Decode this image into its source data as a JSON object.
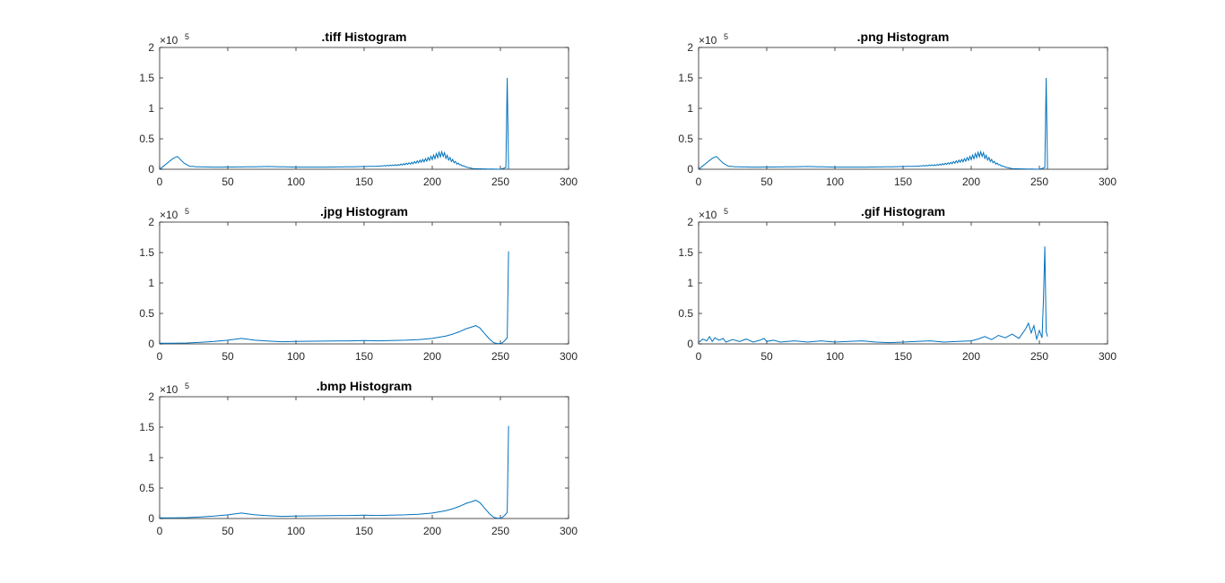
{
  "colors": {
    "line": "#0072BD",
    "axis": "#262626",
    "background": "#ffffff"
  },
  "chart_data": [
    {
      "type": "line",
      "title": ".tiff Histogram",
      "xlim": [
        0,
        300
      ],
      "ylim": [
        0,
        200000
      ],
      "xticks": [
        "0",
        "50",
        "100",
        "150",
        "200",
        "250",
        "300"
      ],
      "yticks": [
        "0",
        "0.5",
        "1",
        "1.5",
        "2"
      ],
      "y_exponent": {
        "base": "×10",
        "power": "5"
      },
      "grid": false,
      "profile": "smooth-peak-oscillating",
      "series": [
        {
          "x": [
            0,
            5,
            10,
            13,
            18,
            22,
            28,
            40,
            60,
            80,
            100,
            120,
            140,
            160,
            175,
            185,
            195,
            200,
            205,
            208,
            212,
            218,
            222,
            226,
            230,
            240,
            250,
            253,
            254,
            255,
            256
          ],
          "y": [
            0,
            9000,
            18000,
            21000,
            10000,
            5000,
            4000,
            3500,
            3800,
            4500,
            3500,
            3500,
            4000,
            5000,
            7000,
            10000,
            15000,
            19000,
            24000,
            25000,
            18000,
            10000,
            6000,
            3000,
            1000,
            500,
            0,
            2000,
            3000,
            150000,
            0
          ],
          "oscillation": {
            "from": 165,
            "to": 228,
            "amplitude": 8000
          }
        }
      ]
    },
    {
      "type": "line",
      "title": ".png Histogram",
      "xlim": [
        0,
        300
      ],
      "ylim": [
        0,
        200000
      ],
      "xticks": [
        "0",
        "50",
        "100",
        "150",
        "200",
        "250",
        "300"
      ],
      "yticks": [
        "0",
        "0.5",
        "1",
        "1.5",
        "2"
      ],
      "y_exponent": {
        "base": "×10",
        "power": "5"
      },
      "grid": false,
      "profile": "smooth-peak-oscillating",
      "series": [
        {
          "x": [
            0,
            5,
            10,
            13,
            18,
            22,
            28,
            40,
            60,
            80,
            100,
            120,
            140,
            160,
            175,
            185,
            195,
            200,
            205,
            208,
            212,
            218,
            222,
            226,
            230,
            240,
            250,
            253,
            254,
            255,
            256
          ],
          "y": [
            0,
            9000,
            18000,
            21000,
            10000,
            5000,
            4000,
            3500,
            3800,
            4500,
            3500,
            3500,
            4000,
            5000,
            7000,
            10000,
            15000,
            19000,
            24000,
            25000,
            18000,
            10000,
            6000,
            3000,
            1000,
            500,
            0,
            2000,
            3000,
            150000,
            0
          ],
          "oscillation": {
            "from": 165,
            "to": 228,
            "amplitude": 8000
          }
        }
      ]
    },
    {
      "type": "line",
      "title": ".jpg Histogram",
      "xlim": [
        0,
        300
      ],
      "ylim": [
        0,
        200000
      ],
      "xticks": [
        "0",
        "50",
        "100",
        "150",
        "200",
        "250",
        "300"
      ],
      "yticks": [
        "0",
        "0.5",
        "1",
        "1.5",
        "2"
      ],
      "y_exponent": {
        "base": "×10",
        "power": "5"
      },
      "grid": false,
      "profile": "smooth",
      "series": [
        {
          "x": [
            0,
            10,
            20,
            30,
            40,
            50,
            55,
            60,
            65,
            70,
            80,
            90,
            100,
            120,
            140,
            150,
            160,
            180,
            190,
            200,
            210,
            215,
            220,
            225,
            228,
            232,
            235,
            238,
            242,
            245,
            248,
            251,
            253,
            255,
            256
          ],
          "y": [
            1000,
            1000,
            1500,
            2500,
            4000,
            6000,
            7500,
            9000,
            7500,
            6000,
            4500,
            3500,
            4000,
            4500,
            5000,
            5500,
            5000,
            6000,
            7000,
            9000,
            13000,
            16000,
            20000,
            25000,
            27000,
            30000,
            26000,
            18000,
            8000,
            2000,
            500,
            1000,
            5000,
            10000,
            152000
          ]
        }
      ]
    },
    {
      "type": "line",
      "title": ".gif Histogram",
      "xlim": [
        0,
        300
      ],
      "ylim": [
        0,
        200000
      ],
      "xticks": [
        "0",
        "50",
        "100",
        "150",
        "200",
        "250",
        "300"
      ],
      "yticks": [
        "0",
        "0.5",
        "1",
        "1.5",
        "2"
      ],
      "y_exponent": {
        "base": "×10",
        "power": "5"
      },
      "grid": false,
      "profile": "noisy",
      "series": [
        {
          "x": [
            0,
            3,
            6,
            8,
            10,
            12,
            15,
            18,
            20,
            25,
            30,
            35,
            40,
            45,
            48,
            50,
            55,
            60,
            70,
            80,
            90,
            100,
            110,
            120,
            130,
            140,
            150,
            160,
            170,
            180,
            190,
            200,
            205,
            210,
            215,
            220,
            225,
            230,
            235,
            240,
            242,
            244,
            246,
            248,
            250,
            252,
            253,
            254,
            255,
            256
          ],
          "y": [
            2000,
            8000,
            5000,
            12000,
            4000,
            10000,
            6000,
            9000,
            3000,
            7000,
            4000,
            8000,
            3000,
            6000,
            9000,
            4000,
            6000,
            3000,
            5000,
            3000,
            5000,
            3000,
            4000,
            5000,
            3000,
            2000,
            3000,
            4000,
            5000,
            3000,
            4000,
            5000,
            8000,
            12000,
            7000,
            14000,
            10000,
            16000,
            9000,
            25000,
            34000,
            18000,
            30000,
            8000,
            22000,
            10000,
            75000,
            160000,
            20000,
            12000
          ]
        }
      ]
    },
    {
      "type": "line",
      "title": ".bmp Histogram",
      "xlim": [
        0,
        300
      ],
      "ylim": [
        0,
        200000
      ],
      "xticks": [
        "0",
        "50",
        "100",
        "150",
        "200",
        "250",
        "300"
      ],
      "yticks": [
        "0",
        "0.5",
        "1",
        "1.5",
        "2"
      ],
      "y_exponent": {
        "base": "×10",
        "power": "5"
      },
      "grid": false,
      "profile": "smooth",
      "series": [
        {
          "x": [
            0,
            10,
            20,
            30,
            40,
            50,
            55,
            60,
            65,
            70,
            80,
            90,
            100,
            120,
            140,
            150,
            160,
            180,
            190,
            200,
            210,
            215,
            220,
            225,
            228,
            232,
            235,
            238,
            242,
            245,
            248,
            251,
            253,
            255,
            256
          ],
          "y": [
            1000,
            1000,
            1500,
            2500,
            4000,
            6000,
            7500,
            9000,
            7500,
            6000,
            4500,
            3500,
            4000,
            4500,
            5000,
            5500,
            5000,
            6000,
            7000,
            9000,
            13000,
            16000,
            20000,
            25000,
            27000,
            30000,
            26000,
            18000,
            8000,
            2000,
            500,
            1000,
            5000,
            10000,
            152000
          ]
        }
      ]
    }
  ]
}
